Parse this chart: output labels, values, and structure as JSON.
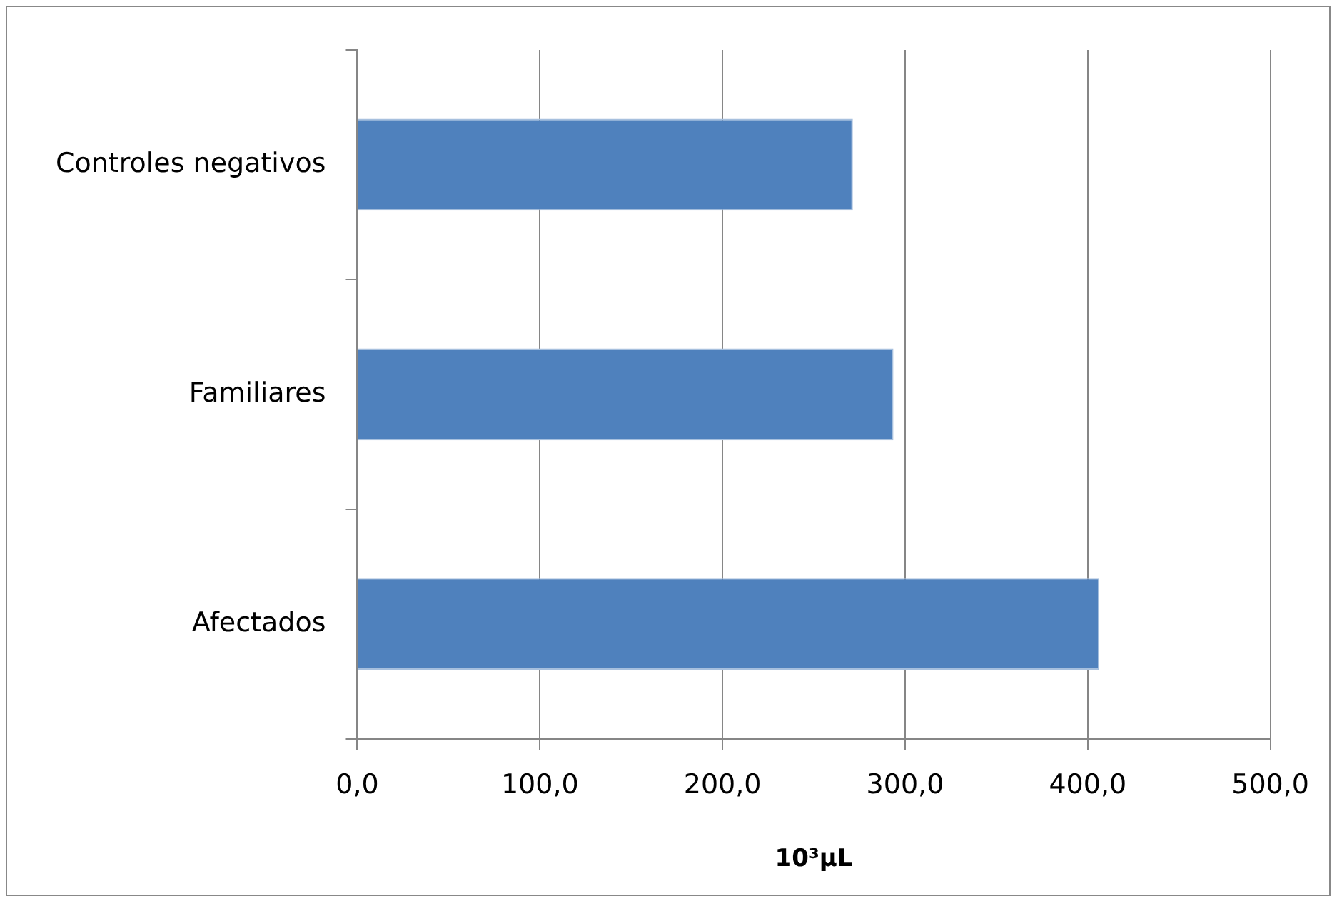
{
  "chart_data": {
    "type": "bar",
    "orientation": "horizontal",
    "categories": [
      "Controles negativos",
      "Familiares",
      "Afectados"
    ],
    "values": [
      271.4,
      293.6,
      406.4
    ],
    "color": "#4f81bd",
    "xlabel": "10³µL",
    "xlim": [
      0,
      500
    ],
    "xticks": [
      {
        "value": 0,
        "label": "0,0"
      },
      {
        "value": 100,
        "label": "100,0"
      },
      {
        "value": 200,
        "label": "200,0"
      },
      {
        "value": 300,
        "label": "300,0"
      },
      {
        "value": 400,
        "label": "400,0"
      },
      {
        "value": 500,
        "label": "500,0"
      }
    ],
    "grid": "x",
    "legend": false
  }
}
